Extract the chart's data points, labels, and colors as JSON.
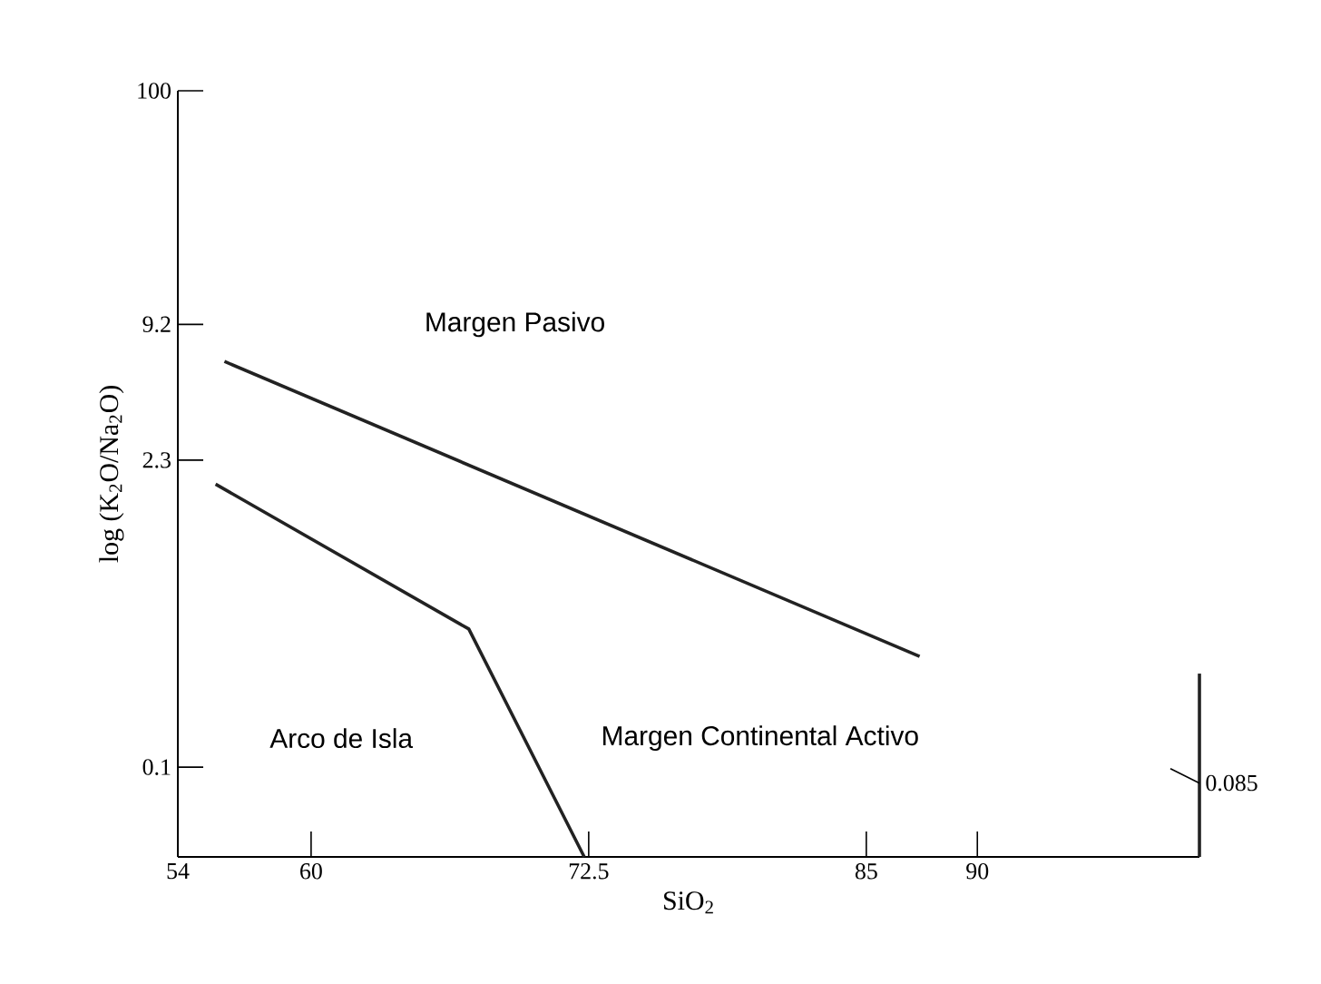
{
  "chart_data": {
    "type": "line",
    "xlabel": "SiO$_{2}$",
    "ylabel": "log (K$_{2}$O/Na$_{2}$O)",
    "xlim": [
      54,
      100
    ],
    "ylim": [
      0.04,
      100
    ],
    "log": "y",
    "xticks": [
      54,
      60,
      72.5,
      85,
      90
    ],
    "yticks": [
      0.1,
      2.3,
      9.2,
      100
    ],
    "series": [
      {
        "color": "#222222",
        "x": [
          56.1,
          87.4
        ],
        "values": [
          6.3,
          0.31
        ]
      },
      {
        "color": "#222222",
        "x": [
          55.7,
          67.1,
          72.3
        ],
        "values": [
          1.8,
          0.41,
          0.04
        ]
      },
      {
        "color": "#222222",
        "x": [
          100,
          100
        ],
        "values": [
          0.04,
          0.26
        ]
      }
    ],
    "annotations": [
      "Margen Pasivo",
      "Arco de Isla",
      "Margen Continental Activo",
      {
        "text": "0.085",
        "x": 100,
        "y": 0.085
      }
    ]
  }
}
